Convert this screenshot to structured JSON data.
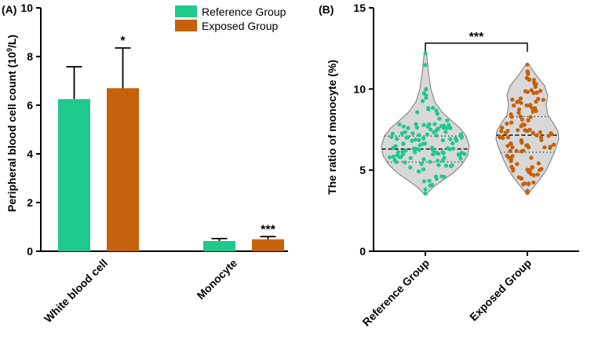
{
  "chart_data": [
    {
      "panel_label": "(A)",
      "type": "bar",
      "ylabel_main": "Peripheral blood cell count (10",
      "ylabel_sup": "9",
      "ylabel_tail": "/L)",
      "ylim": [
        0,
        10
      ],
      "yticks": [
        0,
        2,
        4,
        6,
        8,
        10
      ],
      "categories": [
        "White blood cell",
        "Monocyte"
      ],
      "series": [
        {
          "name": "Reference Group",
          "color": "#1fc98c",
          "values": [
            6.25,
            0.42
          ],
          "errors": [
            1.33,
            0.1
          ]
        },
        {
          "name": "Exposed Group",
          "color": "#c4610a",
          "values": [
            6.7,
            0.49
          ],
          "errors": [
            1.65,
            0.11
          ]
        }
      ],
      "significance": [
        {
          "category": 0,
          "series": 1,
          "label": "*"
        },
        {
          "category": 1,
          "series": 1,
          "label": "***"
        }
      ],
      "legend": "top-right"
    },
    {
      "panel_label": "(B)",
      "type": "violin",
      "ylabel": "The ratio of monocyte (%)",
      "ylim": [
        0,
        15
      ],
      "yticks": [
        0,
        5,
        10,
        15
      ],
      "categories": [
        "Reference Group",
        "Exposed Group"
      ],
      "colors": [
        "#1fc98c",
        "#c4610a"
      ],
      "median": [
        6.3,
        7.15
      ],
      "quartiles": [
        [
          5.5,
          7.1
        ],
        [
          6.1,
          8.3
        ]
      ],
      "range": [
        [
          3.55,
          12.2
        ],
        [
          3.6,
          11.5
        ]
      ],
      "significance": "***"
    }
  ]
}
